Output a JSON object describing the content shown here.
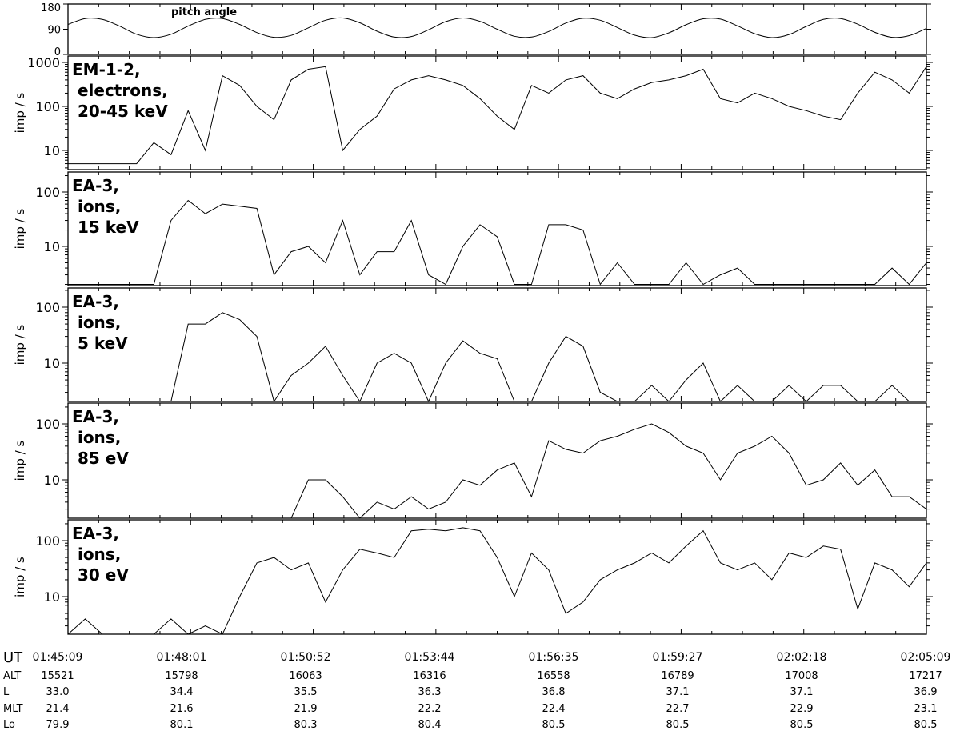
{
  "chart_data": [
    {
      "type": "line",
      "title": "pitch angle",
      "ylim": [
        0,
        180
      ],
      "yticks": [
        "0",
        "90",
        "180"
      ],
      "time": [
        "01:45:09",
        "01:45:33",
        "01:45:57",
        "01:46:21",
        "01:46:45",
        "01:47:09",
        "01:47:33",
        "01:47:57",
        "01:48:21",
        "01:48:45",
        "01:49:09",
        "01:49:33",
        "01:49:57",
        "01:50:21",
        "01:50:45",
        "01:51:09",
        "01:51:33",
        "01:51:57",
        "01:52:21",
        "01:52:45",
        "01:53:09",
        "01:53:33",
        "01:53:57",
        "01:54:21",
        "01:54:45",
        "01:55:09",
        "01:55:33",
        "01:55:57",
        "01:56:21",
        "01:56:45",
        "01:57:09",
        "01:57:33",
        "01:57:57",
        "01:58:21",
        "01:58:45",
        "01:59:09",
        "01:59:33",
        "01:59:57",
        "02:00:21",
        "02:00:45",
        "02:01:09",
        "02:01:33",
        "02:01:57",
        "02:02:21",
        "02:02:45",
        "02:03:09",
        "02:03:33",
        "02:03:57",
        "02:04:21",
        "02:04:45",
        "02:05:09"
      ],
      "values": [
        107,
        128,
        125,
        101,
        72,
        60,
        72,
        101,
        125,
        128,
        107,
        78,
        61,
        68,
        95,
        122,
        130,
        113,
        83,
        62,
        64,
        88,
        117,
        130,
        118,
        90,
        65,
        62,
        82,
        112,
        129,
        122,
        96,
        69,
        60,
        77,
        106,
        127,
        126,
        102,
        74,
        60,
        71,
        100,
        125,
        128,
        108,
        79,
        61,
        67,
        93
      ]
    },
    {
      "type": "line",
      "label": "EM-1-2,\n electrons,\n 20-45 keV",
      "ylabel": "imp / s",
      "yscale": "log",
      "ylim": [
        5,
        1300
      ],
      "yticks": [
        "1000",
        "100",
        "10"
      ],
      "values": [
        5,
        5,
        5,
        5,
        5,
        15,
        8,
        80,
        10,
        500,
        300,
        100,
        50,
        400,
        700,
        800,
        10,
        30,
        60,
        250,
        400,
        500,
        400,
        300,
        150,
        60,
        30,
        300,
        200,
        400,
        500,
        200,
        150,
        250,
        350,
        400,
        500,
        700,
        150,
        120,
        200,
        150,
        100,
        80,
        60,
        50,
        200,
        600,
        400,
        200,
        800
      ]
    },
    {
      "type": "line",
      "label": "EA-3,\n ions,\n 15 keV",
      "ylabel": "imp / s",
      "yscale": "log",
      "ylim": [
        2,
        200
      ],
      "yticks": [
        "100",
        "10"
      ],
      "values": [
        2,
        2,
        2,
        2,
        2,
        2,
        30,
        70,
        40,
        60,
        55,
        50,
        3,
        8,
        10,
        5,
        30,
        3,
        8,
        8,
        30,
        3,
        2,
        10,
        25,
        15,
        2,
        2,
        25,
        25,
        20,
        2,
        5,
        2,
        2,
        2,
        5,
        2,
        3,
        4,
        2,
        2,
        2,
        2,
        2,
        2,
        2,
        2,
        4,
        2,
        5
      ]
    },
    {
      "type": "line",
      "label": "EA-3,\n ions,\n 5 keV",
      "ylabel": "imp / s",
      "yscale": "log",
      "ylim": [
        2,
        200
      ],
      "yticks": [
        "100",
        "10"
      ],
      "values": [
        2,
        2,
        2,
        2,
        2,
        2,
        2,
        50,
        50,
        80,
        60,
        30,
        2,
        6,
        10,
        20,
        6,
        2,
        10,
        15,
        10,
        2,
        10,
        25,
        15,
        12,
        2,
        2,
        10,
        30,
        20,
        3,
        2,
        2,
        4,
        2,
        5,
        10,
        2,
        4,
        2,
        2,
        4,
        2,
        4,
        4,
        2,
        2,
        4,
        2,
        2
      ]
    },
    {
      "type": "line",
      "label": "EA-3,\n ions,\n 85 eV",
      "ylabel": "imp / s",
      "yscale": "log",
      "ylim": [
        2,
        200
      ],
      "yticks": [
        "100",
        "10"
      ],
      "values": [
        2,
        2,
        2,
        2,
        2,
        2,
        2,
        2,
        2,
        2,
        2,
        2,
        2,
        2,
        10,
        10,
        5,
        2,
        4,
        3,
        5,
        3,
        4,
        10,
        8,
        15,
        20,
        5,
        50,
        35,
        30,
        50,
        60,
        80,
        100,
        70,
        40,
        30,
        10,
        30,
        40,
        60,
        30,
        8,
        10,
        20,
        8,
        15,
        5,
        5,
        3
      ]
    },
    {
      "type": "line",
      "label": "EA-3,\n ions,\n 30 eV",
      "ylabel": "imp / s",
      "yscale": "log",
      "ylim": [
        2,
        200
      ],
      "yticks": [
        "100",
        "10"
      ],
      "values": [
        2,
        4,
        2,
        2,
        2,
        2,
        4,
        2,
        3,
        2,
        10,
        40,
        50,
        30,
        40,
        8,
        30,
        70,
        60,
        50,
        150,
        160,
        150,
        170,
        150,
        50,
        10,
        60,
        30,
        5,
        8,
        20,
        30,
        40,
        60,
        40,
        80,
        150,
        40,
        30,
        40,
        20,
        60,
        50,
        80,
        70,
        6,
        40,
        30,
        15,
        40
      ]
    }
  ],
  "table": {
    "rows": [
      {
        "label": "UT",
        "values": [
          "01:45:09",
          "01:48:01",
          "01:50:52",
          "01:53:44",
          "01:56:35",
          "01:59:27",
          "02:02:18",
          "02:05:09"
        ]
      },
      {
        "label": "ALT",
        "values": [
          "15521",
          "15798",
          "16063",
          "16316",
          "16558",
          "16789",
          "17008",
          "17217"
        ]
      },
      {
        "label": "L",
        "values": [
          "33.0",
          "34.4",
          "35.5",
          "36.3",
          "36.8",
          "37.1",
          "37.1",
          "36.9"
        ]
      },
      {
        "label": "MLT",
        "values": [
          "21.4",
          "21.6",
          "21.9",
          "22.2",
          "22.4",
          "22.7",
          "22.9",
          "23.1"
        ]
      },
      {
        "label": "Lo",
        "values": [
          "79.9",
          "80.1",
          "80.3",
          "80.4",
          "80.5",
          "80.5",
          "80.5",
          "80.5"
        ]
      }
    ]
  }
}
